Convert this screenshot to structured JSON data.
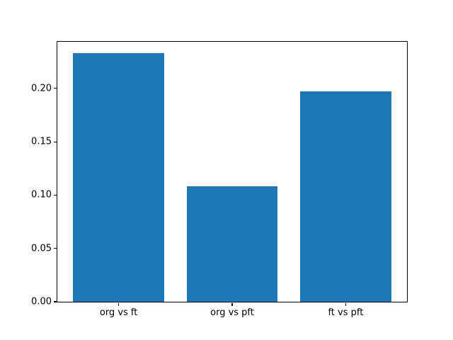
{
  "figure": {
    "background": "#ffffff",
    "spine_color": "#000000",
    "tick_color": "#000000",
    "label_color": "#000000"
  },
  "chart_data": {
    "type": "bar",
    "categories": [
      "org vs ft",
      "org vs pft",
      "ft vs pft"
    ],
    "values": [
      0.233,
      0.108,
      0.197
    ],
    "title": "",
    "xlabel": "",
    "ylabel": "",
    "ylim": [
      0,
      0.2437
    ],
    "xlim": [
      -0.54,
      2.54
    ],
    "bar_width_units": 0.8,
    "yticks": [
      0.0,
      0.05,
      0.1,
      0.15,
      0.2
    ],
    "ytick_labels": [
      "0.00",
      "0.05",
      "0.10",
      "0.15",
      "0.20"
    ],
    "bar_color": "#1f77b4",
    "grid": false,
    "legend": null
  }
}
